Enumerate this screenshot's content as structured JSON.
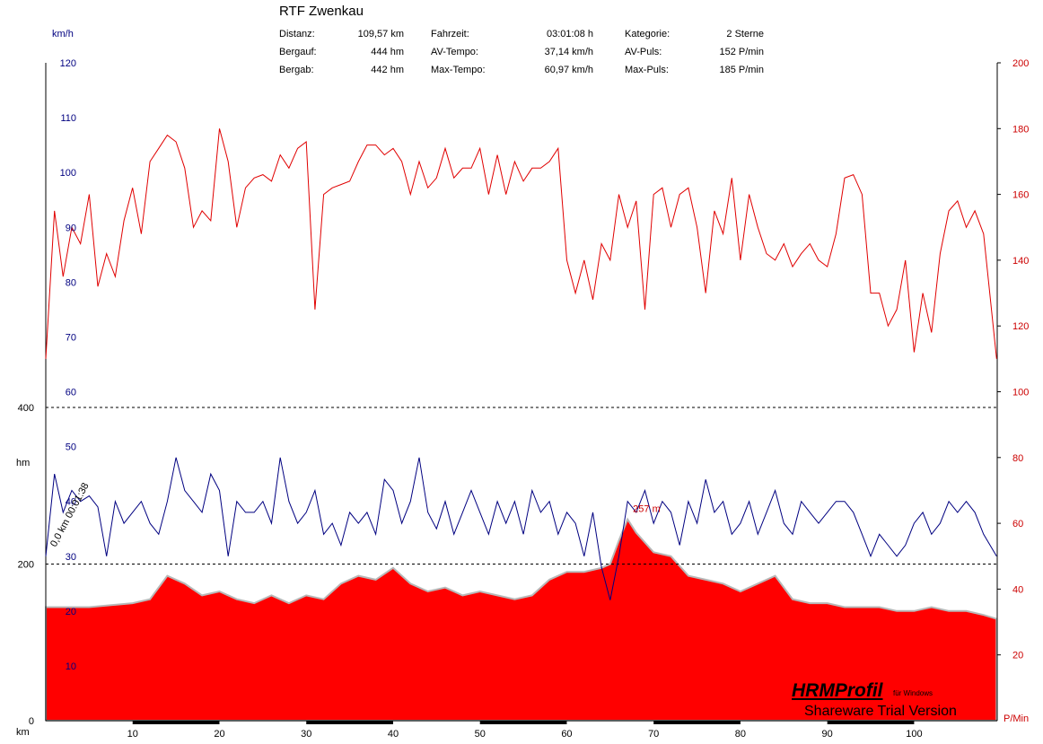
{
  "chart_data": {
    "type": "line",
    "title": "RTF Zwenkau",
    "stats": [
      {
        "label": "Distanz:",
        "value": "109,57 km"
      },
      {
        "label": "Bergauf:",
        "value": "444 hm"
      },
      {
        "label": "Bergab:",
        "value": "442 hm"
      },
      {
        "label": "Fahrzeit:",
        "value": "03:01:08 h"
      },
      {
        "label": "AV-Tempo:",
        "value": "37,14 km/h"
      },
      {
        "label": "Max-Tempo:",
        "value": "60,97 km/h"
      },
      {
        "label": "Kategorie:",
        "value": "2 Sterne"
      },
      {
        "label": "AV-Puls:",
        "value": "152 P/min"
      },
      {
        "label": "Max-Puls:",
        "value": "185 P/min"
      }
    ],
    "units": {
      "speed": "km/h",
      "altitude": "hm",
      "distance": "km",
      "pulse": "P/Min"
    },
    "x_ticks": [
      "10",
      "20",
      "30",
      "40",
      "50",
      "60",
      "70",
      "80",
      "90",
      "100"
    ],
    "speed_ticks": [
      "120",
      "110",
      "100",
      "90",
      "80",
      "70",
      "60",
      "50",
      "40",
      "30",
      "20",
      "10"
    ],
    "altitude_ticks": [
      "400",
      "200",
      "0"
    ],
    "pulse_ticks": [
      "200",
      "180",
      "160",
      "140",
      "120",
      "100",
      "80",
      "60",
      "40",
      "20"
    ],
    "xlim": [
      0,
      109.57
    ],
    "speed_ylim": [
      0,
      120
    ],
    "pulse_ylim": [
      0,
      200
    ],
    "altitude_ylim": [
      0,
      840
    ],
    "altitude_annotation": "257 m",
    "lap_label": "0,0 km 00:01:38",
    "series": [
      {
        "name": "Puls",
        "color": "#e00000",
        "x": [
          0,
          1,
          2,
          3,
          4,
          5,
          6,
          7,
          8,
          9,
          10,
          11,
          12,
          13,
          14,
          15,
          16,
          17,
          18,
          19,
          20,
          21,
          22,
          23,
          24,
          25,
          26,
          27,
          28,
          29,
          30,
          31,
          32,
          33,
          34,
          35,
          36,
          37,
          38,
          39,
          40,
          41,
          42,
          43,
          44,
          45,
          46,
          47,
          48,
          49,
          50,
          51,
          52,
          53,
          54,
          55,
          56,
          57,
          58,
          59,
          60,
          61,
          62,
          63,
          64,
          65,
          66,
          67,
          68,
          69,
          70,
          71,
          72,
          73,
          74,
          75,
          76,
          77,
          78,
          79,
          80,
          81,
          82,
          83,
          84,
          85,
          86,
          87,
          88,
          89,
          90,
          91,
          92,
          93,
          94,
          95,
          96,
          97,
          98,
          99,
          100,
          101,
          102,
          103,
          104,
          105,
          106,
          107,
          108,
          109.5
        ],
        "values": [
          110,
          155,
          135,
          150,
          145,
          160,
          132,
          142,
          135,
          152,
          162,
          148,
          170,
          174,
          178,
          176,
          168,
          150,
          155,
          152,
          180,
          170,
          150,
          162,
          165,
          166,
          164,
          172,
          168,
          174,
          176,
          125,
          160,
          162,
          163,
          164,
          170,
          175,
          175,
          172,
          174,
          170,
          160,
          170,
          162,
          165,
          174,
          165,
          168,
          168,
          174,
          160,
          172,
          160,
          170,
          164,
          168,
          168,
          170,
          174,
          140,
          130,
          140,
          128,
          145,
          140,
          160,
          150,
          158,
          125,
          160,
          162,
          150,
          160,
          162,
          150,
          130,
          155,
          148,
          165,
          140,
          160,
          150,
          142,
          140,
          145,
          138,
          142,
          145,
          140,
          138,
          148,
          165,
          166,
          160,
          130,
          130,
          120,
          125,
          140,
          112,
          130,
          118,
          142,
          155,
          158,
          150,
          155,
          148,
          110
        ]
      },
      {
        "name": "Tempo",
        "color": "#000080",
        "x": [
          0,
          1,
          2,
          3,
          4,
          5,
          6,
          7,
          8,
          9,
          10,
          11,
          12,
          13,
          14,
          15,
          16,
          17,
          18,
          19,
          20,
          21,
          22,
          23,
          24,
          25,
          26,
          27,
          28,
          29,
          30,
          31,
          32,
          33,
          34,
          35,
          36,
          37,
          38,
          39,
          40,
          41,
          42,
          43,
          44,
          45,
          46,
          47,
          48,
          49,
          50,
          51,
          52,
          53,
          54,
          55,
          56,
          57,
          58,
          59,
          60,
          61,
          62,
          63,
          64,
          65,
          66,
          67,
          68,
          69,
          70,
          71,
          72,
          73,
          74,
          75,
          76,
          77,
          78,
          79,
          80,
          81,
          82,
          83,
          84,
          85,
          86,
          87,
          88,
          89,
          90,
          91,
          92,
          93,
          94,
          95,
          96,
          97,
          98,
          99,
          100,
          101,
          102,
          103,
          104,
          105,
          106,
          107,
          108,
          109.5
        ],
        "values": [
          30,
          45,
          38,
          42,
          40,
          41,
          39,
          30,
          40,
          36,
          38,
          40,
          36,
          34,
          40,
          48,
          42,
          40,
          38,
          45,
          42,
          30,
          40,
          38,
          38,
          40,
          36,
          48,
          40,
          36,
          38,
          42,
          34,
          36,
          32,
          38,
          36,
          38,
          34,
          44,
          42,
          36,
          40,
          48,
          38,
          35,
          40,
          34,
          38,
          42,
          38,
          34,
          40,
          36,
          40,
          34,
          42,
          38,
          40,
          34,
          38,
          36,
          30,
          38,
          28,
          22,
          30,
          40,
          38,
          42,
          36,
          40,
          38,
          32,
          40,
          36,
          44,
          38,
          40,
          34,
          36,
          40,
          34,
          38,
          42,
          36,
          34,
          40,
          38,
          36,
          38,
          40,
          40,
          38,
          34,
          30,
          34,
          32,
          30,
          32,
          36,
          38,
          34,
          36,
          40,
          38,
          40,
          38,
          34,
          30
        ]
      },
      {
        "name": "Höhe",
        "color": "#ff0000",
        "x": [
          0,
          5,
          10,
          12,
          14,
          16,
          18,
          20,
          22,
          24,
          26,
          28,
          30,
          32,
          34,
          36,
          38,
          40,
          42,
          44,
          46,
          48,
          50,
          52,
          54,
          56,
          58,
          60,
          62,
          64,
          65,
          66,
          67,
          68,
          70,
          72,
          74,
          76,
          78,
          80,
          82,
          84,
          86,
          88,
          90,
          92,
          94,
          96,
          98,
          100,
          102,
          104,
          106,
          108,
          109.5
        ],
        "values": [
          145,
          145,
          150,
          155,
          185,
          175,
          160,
          165,
          155,
          150,
          160,
          150,
          160,
          155,
          175,
          185,
          180,
          195,
          175,
          165,
          170,
          160,
          165,
          160,
          155,
          160,
          180,
          190,
          190,
          195,
          200,
          230,
          257,
          240,
          215,
          210,
          185,
          180,
          175,
          165,
          175,
          185,
          155,
          150,
          150,
          145,
          145,
          145,
          140,
          140,
          145,
          140,
          140,
          135,
          130
        ]
      }
    ]
  }
}
